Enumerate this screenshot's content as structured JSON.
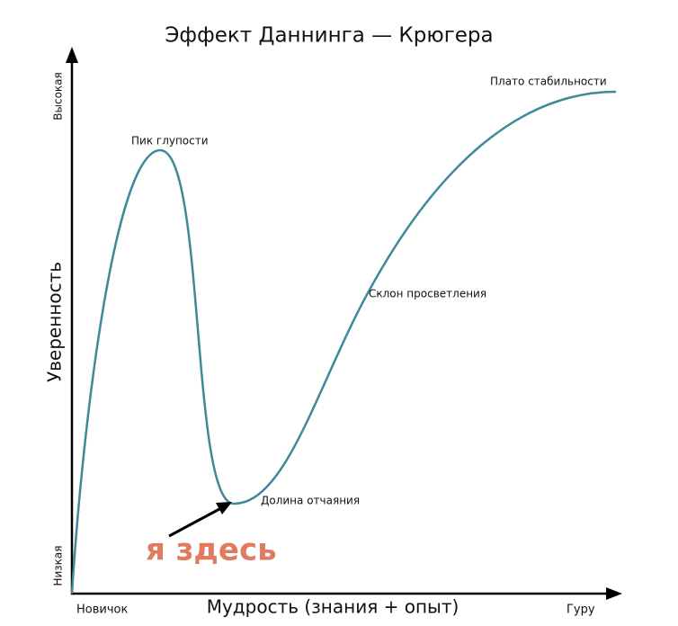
{
  "title": "Эффект Даннинга — Крюгера",
  "y_axis": {
    "label": "Уверенность",
    "high": "Высокая",
    "low": "Низкая"
  },
  "x_axis": {
    "label": "Мудрость (знания + опыт)",
    "start": "Новичок",
    "end": "Гуру"
  },
  "annotations": {
    "peak": "Пик глупости",
    "valley": "Долина отчаяния",
    "slope": "Склон просветления",
    "plateau": "Плато стабильности",
    "you_are_here": "я здесь"
  }
}
